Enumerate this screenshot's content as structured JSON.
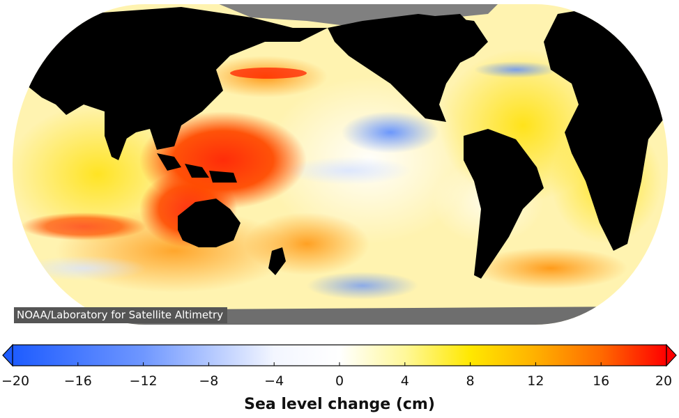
{
  "map": {
    "credit": "NOAA/Laboratory for Satellite Altimetry",
    "ocean_base_color": "#fff3b0",
    "land_color": "#000000",
    "ice_color": "#808080",
    "anomalies": [
      {
        "region": "western-tropical-pacific",
        "level": "high",
        "value_cm": 18
      },
      {
        "region": "north-australia",
        "level": "high",
        "value_cm": 18
      },
      {
        "region": "south-indian-ocean",
        "level": "high",
        "value_cm": 16
      },
      {
        "region": "north-pacific-kuroshio",
        "level": "high",
        "value_cm": 16
      },
      {
        "region": "east-equatorial-pacific",
        "level": "low",
        "value_cm": -8
      },
      {
        "region": "southern-ocean-pacific",
        "level": "low",
        "value_cm": -8
      },
      {
        "region": "north-atlantic",
        "level": "low",
        "value_cm": -8
      }
    ]
  },
  "colorbar": {
    "title": "Sea level change (cm)",
    "min": -20,
    "max": 20,
    "ticks": [
      "−20",
      "−16",
      "−12",
      "−8",
      "−4",
      "0",
      "4",
      "8",
      "12",
      "16",
      "20"
    ],
    "stops": [
      {
        "value": -20,
        "color": "#1e5cff"
      },
      {
        "value": -12,
        "color": "#6f97ff"
      },
      {
        "value": -4,
        "color": "#f3f6ff"
      },
      {
        "value": 0,
        "color": "#ffffff"
      },
      {
        "value": 4,
        "color": "#fff89a"
      },
      {
        "value": 8,
        "color": "#ffe800"
      },
      {
        "value": 12,
        "color": "#ffb000"
      },
      {
        "value": 16,
        "color": "#ff6a00"
      },
      {
        "value": 20,
        "color": "#ff0000"
      }
    ]
  }
}
